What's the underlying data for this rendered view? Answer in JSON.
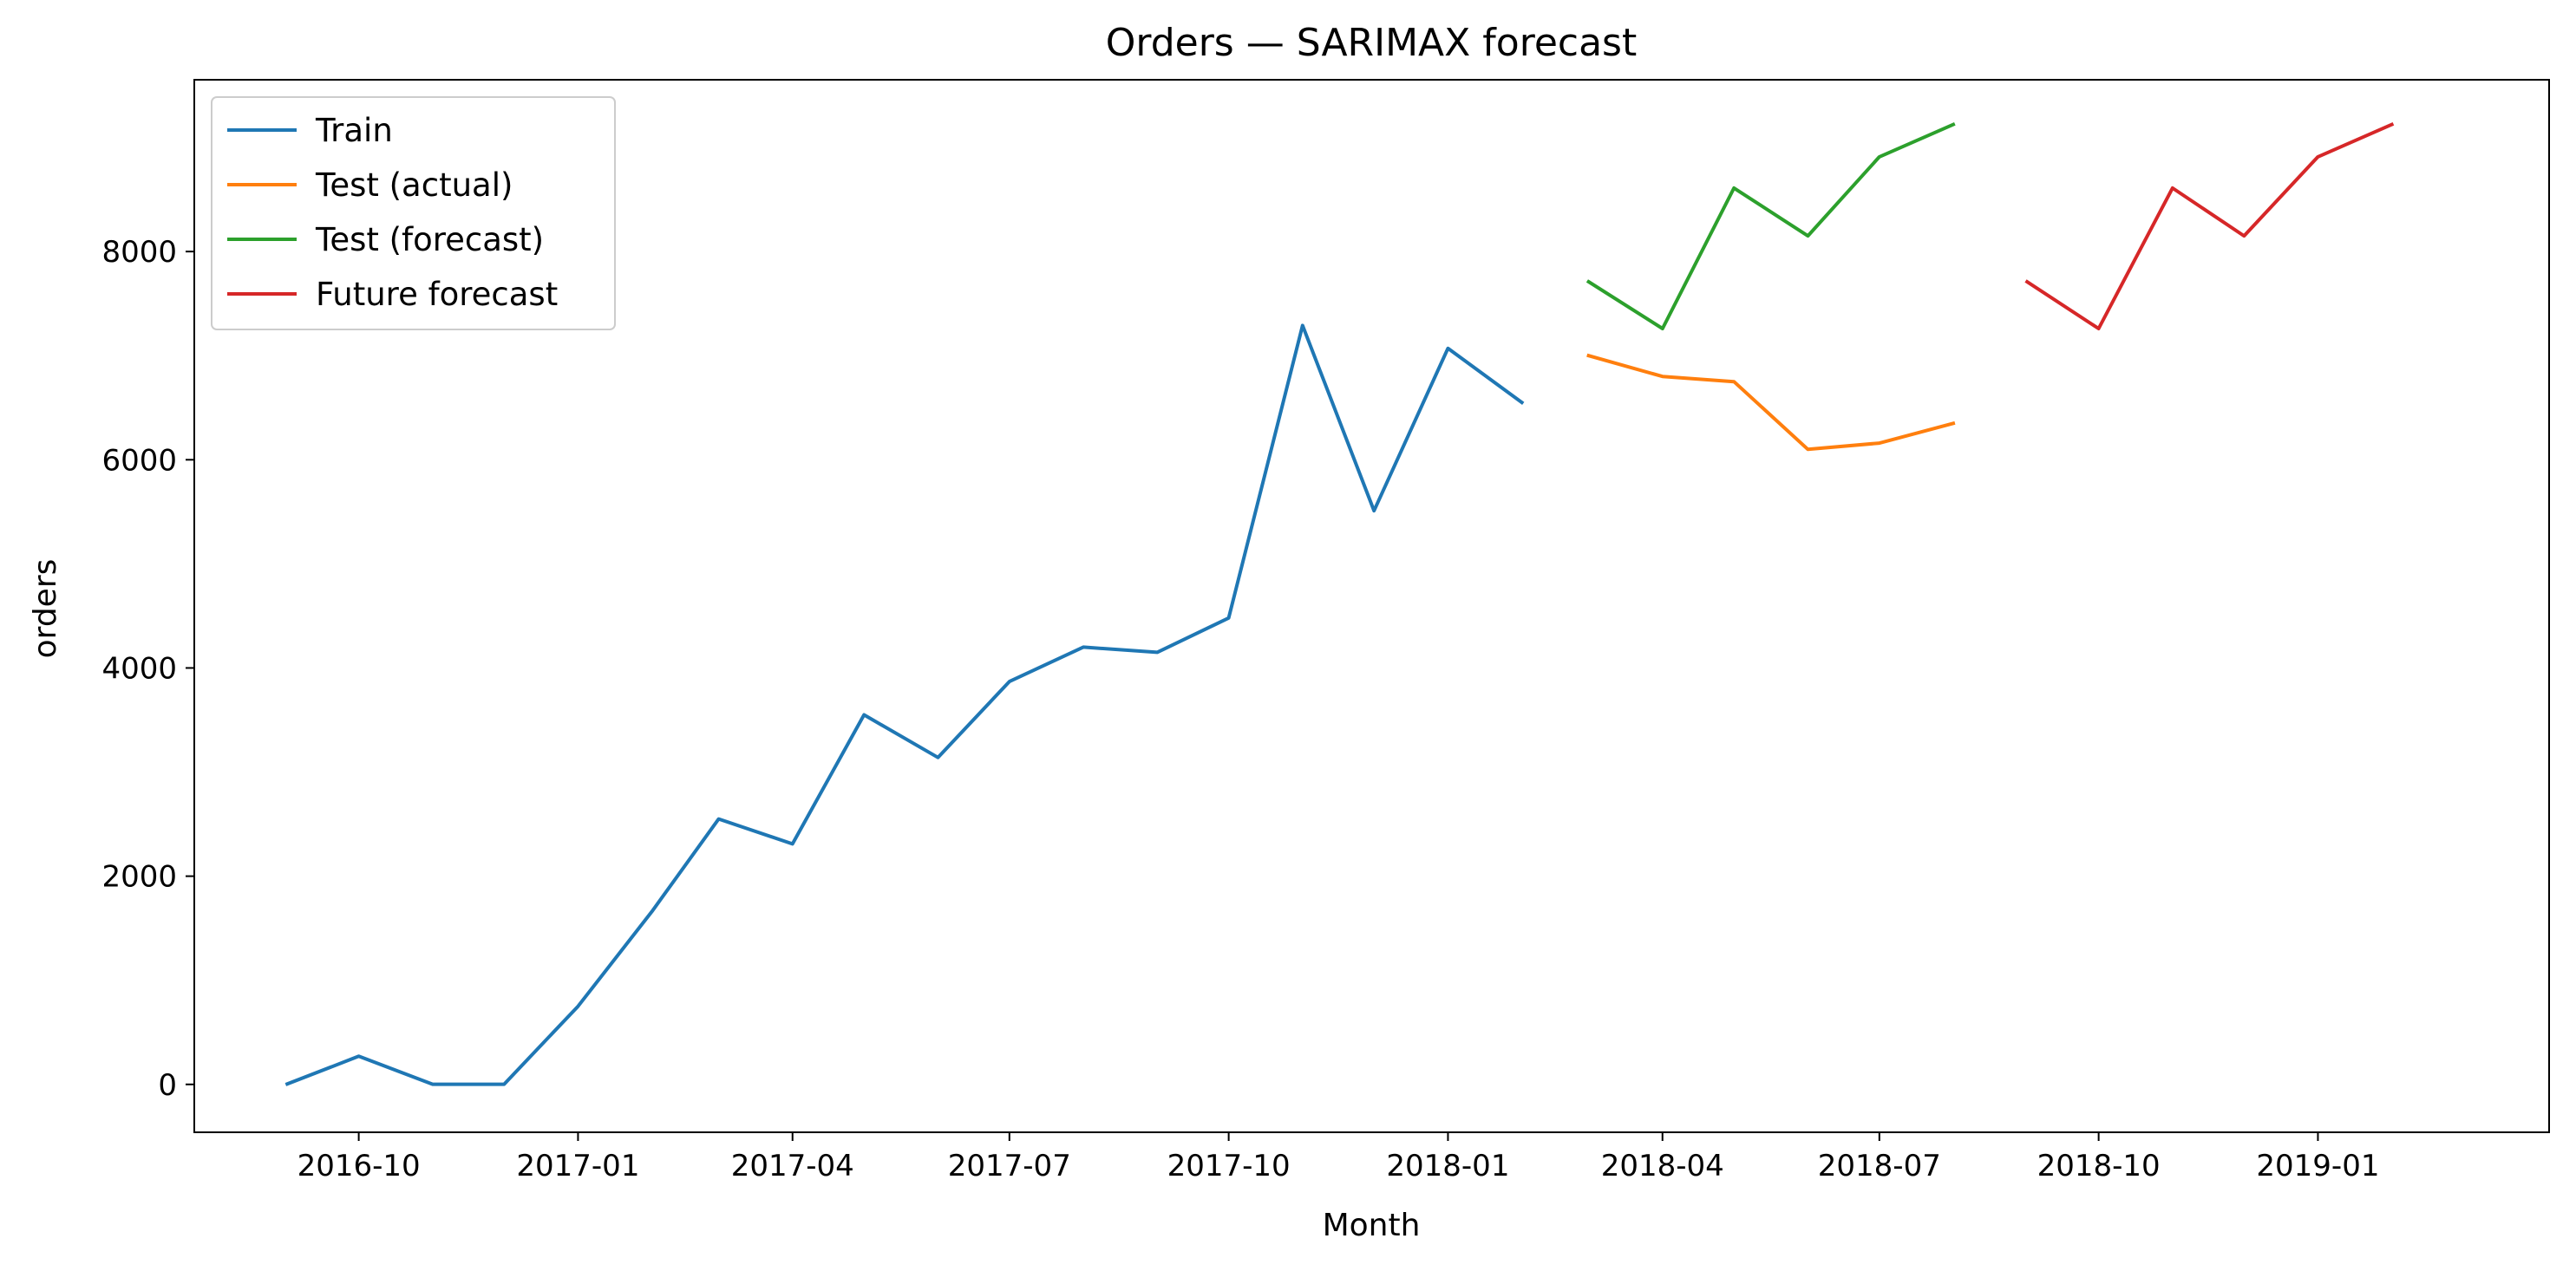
{
  "chart_data": {
    "type": "line",
    "title": "Orders — SARIMAX forecast",
    "xlabel": "Month",
    "ylabel": "orders",
    "x_axis": {
      "kind": "date",
      "range": [
        "2016-07-24",
        "2019-04-08"
      ],
      "ticks": [
        "2016-10",
        "2017-01",
        "2017-04",
        "2017-07",
        "2017-10",
        "2018-01",
        "2018-04",
        "2018-07",
        "2018-10",
        "2019-01"
      ]
    },
    "y_axis": {
      "range": [
        -460,
        9650
      ],
      "ticks": [
        0,
        2000,
        4000,
        6000,
        8000
      ]
    },
    "grid": false,
    "legend": "top-left",
    "series": [
      {
        "name": "Train",
        "color": "#1f77b4",
        "x": [
          "2016-09-01",
          "2016-10-01",
          "2016-11-01",
          "2016-12-01",
          "2017-01-01",
          "2017-02-01",
          "2017-03-01",
          "2017-04-01",
          "2017-05-01",
          "2017-06-01",
          "2017-07-01",
          "2017-08-01",
          "2017-09-01",
          "2017-10-01",
          "2017-11-01",
          "2017-12-01",
          "2018-01-01",
          "2018-02-01"
        ],
        "values": [
          4,
          270,
          1,
          1,
          750,
          1660,
          2550,
          2310,
          3550,
          3140,
          3870,
          4200,
          4150,
          4480,
          7290,
          5510,
          7070,
          6550
        ]
      },
      {
        "name": "Test (actual)",
        "color": "#ff7f0e",
        "x": [
          "2018-03-01",
          "2018-04-01",
          "2018-05-01",
          "2018-06-01",
          "2018-07-01",
          "2018-08-01"
        ],
        "values": [
          7000,
          6800,
          6750,
          6100,
          6160,
          6350
        ]
      },
      {
        "name": "Test (forecast)",
        "color": "#2ca02c",
        "x": [
          "2018-03-01",
          "2018-04-01",
          "2018-05-01",
          "2018-06-01",
          "2018-07-01",
          "2018-08-01"
        ],
        "values": [
          7710,
          7260,
          8610,
          8150,
          8910,
          9220
        ]
      },
      {
        "name": "Future forecast",
        "color": "#d62728",
        "x": [
          "2018-09-01",
          "2018-10-01",
          "2018-11-01",
          "2018-12-01",
          "2019-01-01",
          "2019-02-01"
        ],
        "values": [
          7710,
          7260,
          8610,
          8150,
          8910,
          9220
        ]
      }
    ]
  }
}
